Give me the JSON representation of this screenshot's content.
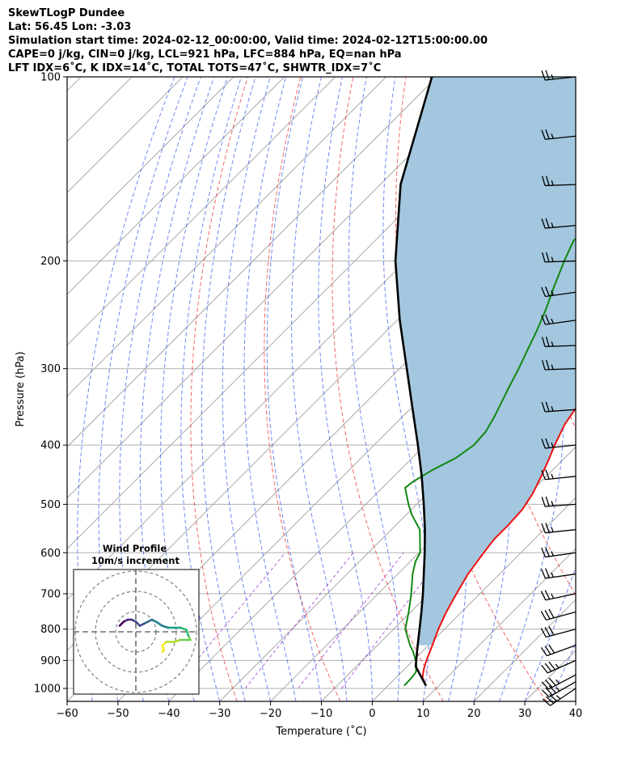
{
  "header": {
    "line1": "SkewTLogP Dundee",
    "line2": "Lat: 56.45   Lon: -3.03",
    "line3": "Simulation start time: 2024-02-12_00:00:00, Valid time: 2024-02-12T15:00:00.00",
    "line4": "CAPE=0 j/kg, CIN=0 j/kg, LCL=921 hPa, LFC=884 hPa, EQ=nan hPa",
    "line5": "LFT IDX=6˚C, K IDX=14˚C, TOTAL TOTS=47˚C, SHWTR_IDX=7˚C"
  },
  "chart_data": {
    "type": "skewt-logp",
    "xlabel": "Temperature (˚C)",
    "ylabel": "Pressure (hPa)",
    "xlim": [
      -60,
      40
    ],
    "ylim": [
      1050,
      100
    ],
    "y_scale": "log",
    "skew_degrees": 45,
    "grid": true,
    "x_ticks": [
      -60,
      -50,
      -40,
      -30,
      -20,
      -10,
      0,
      10,
      20,
      30,
      40
    ],
    "y_ticks": [
      1000,
      900,
      800,
      700,
      600,
      500,
      400,
      300,
      200,
      100
    ],
    "series": [
      {
        "kind": "temperature",
        "color": "#ee1111",
        "points": [
          [
            990,
            7.5
          ],
          [
            960,
            5.2
          ],
          [
            930,
            3.8
          ],
          [
            900,
            2.6
          ],
          [
            850,
            0.8
          ],
          [
            800,
            -1.2
          ],
          [
            750,
            -3.0
          ],
          [
            700,
            -4.6
          ],
          [
            650,
            -6.2
          ],
          [
            600,
            -7.3
          ],
          [
            570,
            -7.9
          ],
          [
            540,
            -7.9
          ],
          [
            510,
            -8.2
          ],
          [
            480,
            -9.3
          ],
          [
            450,
            -11.0
          ],
          [
            420,
            -13.0
          ],
          [
            400,
            -14.5
          ],
          [
            370,
            -16.6
          ],
          [
            350,
            -17.5
          ],
          [
            330,
            -17.8
          ],
          [
            310,
            -17.5
          ],
          [
            290,
            -16.7
          ],
          [
            270,
            -15.7
          ],
          [
            250,
            -14.6
          ],
          [
            235,
            -13.8
          ],
          [
            220,
            -11.1
          ],
          [
            200,
            -7.2
          ],
          [
            185,
            -6.8
          ],
          [
            175,
            -6.0
          ],
          [
            160,
            -4.0
          ],
          [
            140,
            -1.9
          ],
          [
            125,
            0.0
          ],
          [
            110,
            0.6
          ],
          [
            100,
            1.7
          ]
        ]
      },
      {
        "kind": "dewpoint",
        "color": "#118811",
        "points": [
          [
            990,
            3.2
          ],
          [
            960,
            3.1
          ],
          [
            940,
            2.8
          ],
          [
            920,
            1.8
          ],
          [
            900,
            0.5
          ],
          [
            870,
            -1.8
          ],
          [
            850,
            -3.6
          ],
          [
            800,
            -7.7
          ],
          [
            750,
            -10.4
          ],
          [
            700,
            -13.5
          ],
          [
            650,
            -17.1
          ],
          [
            620,
            -19.0
          ],
          [
            600,
            -19.8
          ],
          [
            550,
            -24.4
          ],
          [
            520,
            -28.9
          ],
          [
            500,
            -31.6
          ],
          [
            470,
            -35.5
          ],
          [
            460,
            -35.2
          ],
          [
            440,
            -33.7
          ],
          [
            420,
            -31.4
          ],
          [
            400,
            -30.4
          ],
          [
            380,
            -30.7
          ],
          [
            360,
            -31.9
          ],
          [
            340,
            -33.4
          ],
          [
            320,
            -35.0
          ],
          [
            300,
            -36.6
          ],
          [
            280,
            -38.5
          ],
          [
            260,
            -40.5
          ],
          [
            240,
            -42.9
          ],
          [
            220,
            -45.8
          ],
          [
            200,
            -48.8
          ],
          [
            185,
            -51.0
          ],
          [
            170,
            -49.0
          ],
          [
            150,
            -46.2
          ],
          [
            130,
            -43.4
          ],
          [
            115,
            -41.8
          ],
          [
            100,
            -40.0
          ]
        ]
      },
      {
        "kind": "parcel",
        "color": "#000000",
        "points": [
          [
            990,
            7.5
          ],
          [
            921,
            1.7
          ],
          [
            900,
            0.6
          ],
          [
            850,
            -2.1
          ],
          [
            800,
            -4.9
          ],
          [
            750,
            -7.9
          ],
          [
            700,
            -11.2
          ],
          [
            650,
            -14.9
          ],
          [
            600,
            -18.9
          ],
          [
            550,
            -23.4
          ],
          [
            500,
            -28.6
          ],
          [
            450,
            -34.5
          ],
          [
            400,
            -41.4
          ],
          [
            350,
            -49.4
          ],
          [
            300,
            -58.6
          ],
          [
            250,
            -69.5
          ],
          [
            200,
            -82.0
          ],
          [
            150,
            -96.0
          ],
          [
            100,
            -111.0
          ]
        ]
      }
    ],
    "cape_cin_shading": {
      "color": "#a3c7df"
    },
    "dry_adiabats_color": "#ee3333",
    "moist_adiabats_color": "#3355ee",
    "mixing_ratio_color": "#9933cc",
    "wind_barbs": [
      {
        "p": 1000,
        "speed_kt": 35,
        "dir_deg": 236
      },
      {
        "p": 975,
        "speed_kt": 35,
        "dir_deg": 240
      },
      {
        "p": 950,
        "speed_kt": 35,
        "dir_deg": 242
      },
      {
        "p": 900,
        "speed_kt": 35,
        "dir_deg": 246
      },
      {
        "p": 850,
        "speed_kt": 30,
        "dir_deg": 250
      },
      {
        "p": 800,
        "speed_kt": 30,
        "dir_deg": 255
      },
      {
        "p": 750,
        "speed_kt": 30,
        "dir_deg": 255
      },
      {
        "p": 700,
        "speed_kt": 25,
        "dir_deg": 258
      },
      {
        "p": 650,
        "speed_kt": 25,
        "dir_deg": 262
      },
      {
        "p": 600,
        "speed_kt": 25,
        "dir_deg": 262
      },
      {
        "p": 550,
        "speed_kt": 25,
        "dir_deg": 264
      },
      {
        "p": 500,
        "speed_kt": 25,
        "dir_deg": 266
      },
      {
        "p": 450,
        "speed_kt": 25,
        "dir_deg": 264
      },
      {
        "p": 400,
        "speed_kt": 25,
        "dir_deg": 264
      },
      {
        "p": 350,
        "speed_kt": 25,
        "dir_deg": 266
      },
      {
        "p": 300,
        "speed_kt": 25,
        "dir_deg": 268
      },
      {
        "p": 275,
        "speed_kt": 25,
        "dir_deg": 268
      },
      {
        "p": 250,
        "speed_kt": 25,
        "dir_deg": 262
      },
      {
        "p": 225,
        "speed_kt": 25,
        "dir_deg": 262
      },
      {
        "p": 200,
        "speed_kt": 25,
        "dir_deg": 268
      },
      {
        "p": 175,
        "speed_kt": 25,
        "dir_deg": 265
      },
      {
        "p": 150,
        "speed_kt": 25,
        "dir_deg": 268
      },
      {
        "p": 125,
        "speed_kt": 25,
        "dir_deg": 264
      },
      {
        "p": 100,
        "speed_kt": 25,
        "dir_deg": 264
      }
    ],
    "hodograph": {
      "title": "Wind Profile",
      "subtitle": "10m/s increment",
      "ring_increment_ms": 10,
      "rings": 3,
      "points": [
        [
          13,
          -10
        ],
        [
          14,
          -9
        ],
        [
          13,
          -7
        ],
        [
          15,
          -5
        ],
        [
          19,
          -5
        ],
        [
          22,
          -4
        ],
        [
          25,
          -4
        ],
        [
          27,
          -4
        ],
        [
          26,
          -2
        ],
        [
          25,
          1
        ],
        [
          22,
          2
        ],
        [
          19,
          2
        ],
        [
          16,
          2
        ],
        [
          13,
          3
        ],
        [
          10,
          5
        ],
        [
          8,
          6
        ],
        [
          6,
          5
        ],
        [
          4,
          4
        ],
        [
          2,
          3
        ],
        [
          0,
          5
        ],
        [
          -2,
          6
        ],
        [
          -4,
          6
        ],
        [
          -6,
          5
        ],
        [
          -7,
          4
        ],
        [
          -8,
          3
        ]
      ]
    }
  }
}
